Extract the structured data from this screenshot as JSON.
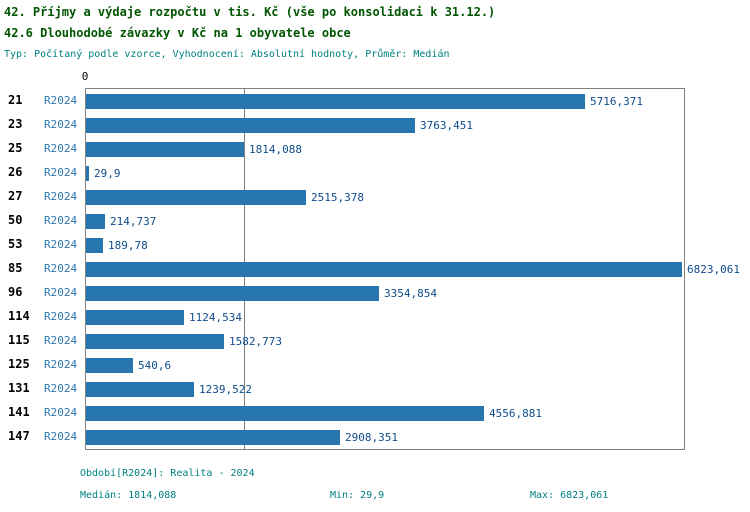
{
  "page": {
    "title": "42. Příjmy a výdaje rozpočtu v tis. Kč (vše po konsolidaci k 31.12.)",
    "subtitle": "42.6 Dlouhodobé závazky v Kč na 1 obyvatele obce",
    "meta": "Typ: Počítaný podle vzorce, Vyhodnocení: Absolutní hodnoty, Průměr: Medián"
  },
  "axis": {
    "zero_label": "0"
  },
  "chart_data": {
    "type": "bar",
    "orientation": "horizontal",
    "title": "42.6 Dlouhodobé závazky v Kč na 1 obyvatele obce",
    "categories": [
      "21",
      "23",
      "25",
      "26",
      "27",
      "50",
      "53",
      "85",
      "96",
      "114",
      "115",
      "125",
      "131",
      "141",
      "147"
    ],
    "series": [
      {
        "name": "R2024",
        "values": [
          5716.371,
          3763.451,
          1814.088,
          29.9,
          2515.378,
          214.737,
          189.78,
          6823.061,
          3354.854,
          1124.534,
          1582.773,
          540.6,
          1239.522,
          4556.881,
          2908.351
        ],
        "value_labels": [
          "5716,371",
          "3763,451",
          "1814,088",
          "29,9",
          "2515,378",
          "214,737",
          "189,78",
          "6823,061",
          "3354,854",
          "1124,534",
          "1582,773",
          "540,6",
          "1239,522",
          "4556,881",
          "2908,351"
        ]
      }
    ],
    "xlim": [
      0,
      6823.061
    ],
    "median_line_value": 1814.088,
    "grid": false,
    "legend": "none"
  },
  "footer": {
    "period": "Období[R2024]: Realita - 2024",
    "median": "Medián: 1814,088",
    "min": "Min: 29,9",
    "max": "Max: 6823,061"
  },
  "colors": {
    "title": "#005500",
    "meta": "#008080",
    "footer": "#008080",
    "bar": "#2777AE",
    "series_label": "#2777AE",
    "value_label": "#0F4C8C",
    "border": "#808080"
  }
}
